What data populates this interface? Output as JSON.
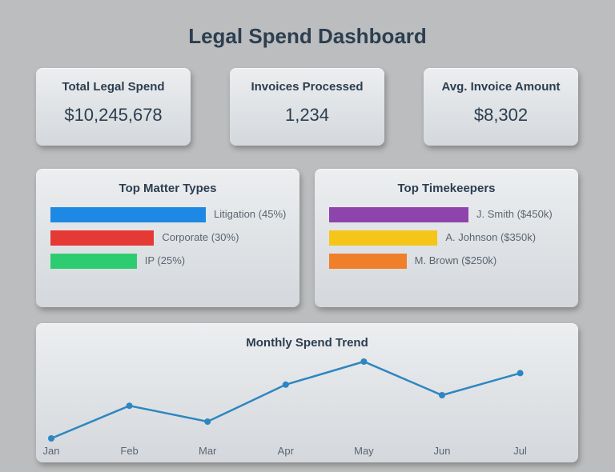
{
  "page_title": "Legal Spend Dashboard",
  "kpis": [
    {
      "label": "Total Legal Spend",
      "value": "$10,245,678"
    },
    {
      "label": "Invoices Processed",
      "value": "1,234"
    },
    {
      "label": "Avg. Invoice Amount",
      "value": "$8,302"
    }
  ],
  "colors": {
    "litigation": "#1e88e5",
    "corporate": "#e53935",
    "ip": "#2ecc71",
    "smith": "#8e44ad",
    "johnson": "#f5c518",
    "brown": "#f07f2a",
    "trend_line": "#2e86c1"
  },
  "chart_data": [
    {
      "type": "bar",
      "orientation": "horizontal",
      "title": "Top Matter Types",
      "categories": [
        "Litigation (45%)",
        "Corporate (30%)",
        "IP (25%)"
      ],
      "values": [
        45,
        30,
        25
      ],
      "unit": "%",
      "colors": [
        "#1e88e5",
        "#e53935",
        "#2ecc71"
      ]
    },
    {
      "type": "bar",
      "orientation": "horizontal",
      "title": "Top Timekeepers",
      "categories": [
        "J. Smith ($450k)",
        "A. Johnson ($350k)",
        "M. Brown ($250k)"
      ],
      "values": [
        450,
        350,
        250
      ],
      "unit": "$k",
      "colors": [
        "#8e44ad",
        "#f5c518",
        "#f07f2a"
      ]
    },
    {
      "type": "line",
      "title": "Monthly Spend Trend",
      "categories": [
        "Jan",
        "Feb",
        "Mar",
        "Apr",
        "May",
        "Jun",
        "Jul"
      ],
      "values": [
        0,
        0.68,
        0.35,
        1.12,
        1.6,
        0.9,
        1.36
      ],
      "y_axis_labels_shown": false,
      "grid": false,
      "color": "#2e86c1"
    }
  ]
}
